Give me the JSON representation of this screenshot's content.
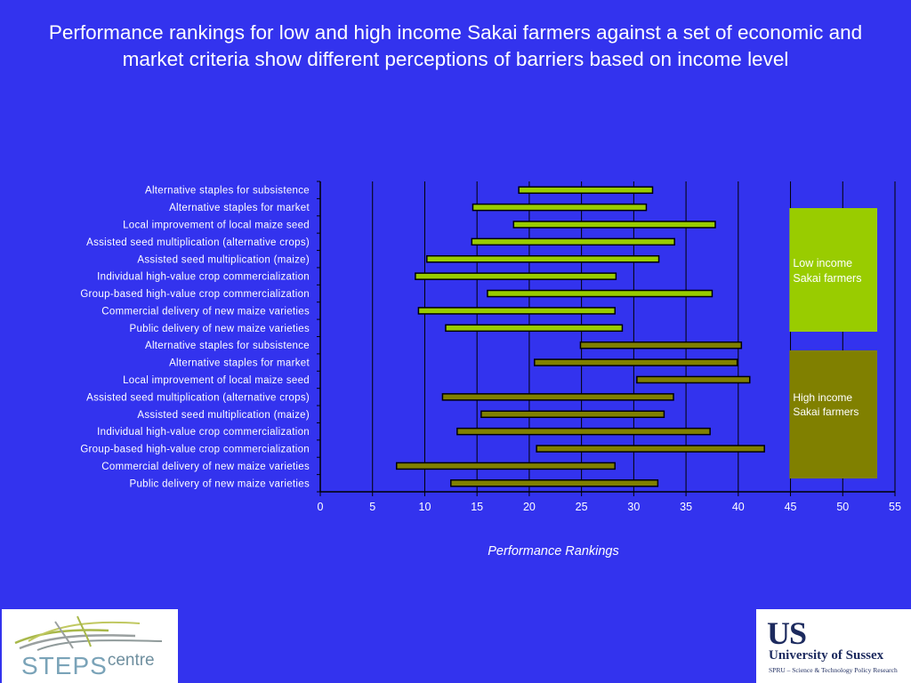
{
  "slide": {
    "title": "Performance rankings for low and high income Sakai farmers against a set of economic and market criteria show different perceptions of barriers based on income level"
  },
  "colors": {
    "background": "#3333ee",
    "low_income": "#99cc00",
    "high_income": "#808000"
  },
  "chart_data": {
    "type": "bar",
    "subtype": "floating-range-horizontal",
    "xlabel": "Performance Rankings",
    "xlim": [
      0,
      55
    ],
    "xticks": [
      0,
      5,
      10,
      15,
      20,
      25,
      30,
      35,
      40,
      45,
      50,
      55
    ],
    "grid": "vertical",
    "legend_position": "right",
    "series": [
      {
        "name": "Low income Sakai farmers",
        "color": "#99cc00",
        "categories": [
          "Alternative staples for subsistence",
          "Alternative staples for market",
          "Local improvement of local maize seed",
          "Assisted seed multiplication (alternative crops)",
          "Assisted seed multiplication (maize)",
          "Individual high-value crop commercialization",
          "Group-based high-value crop commercialization",
          "Commercial delivery of new maize varieties",
          "Public delivery of new maize varieties"
        ],
        "ranges": [
          [
            19,
            31.8
          ],
          [
            14.6,
            31.2
          ],
          [
            18.5,
            37.8
          ],
          [
            14.5,
            33.9
          ],
          [
            10.2,
            32.4
          ],
          [
            9.1,
            28.3
          ],
          [
            16,
            37.5
          ],
          [
            9.4,
            28.2
          ],
          [
            12,
            28.9
          ]
        ]
      },
      {
        "name": "High income Sakai farmers",
        "color": "#808000",
        "categories": [
          "Alternative staples for subsistence",
          "Alternative staples for market",
          "Local improvement of local maize seed",
          "Assisted seed multiplication (alternative crops)",
          "Assisted seed multiplication (maize)",
          "Individual high-value crop commercialization",
          "Group-based high-value crop commercialization",
          "Commercial delivery of new maize varieties",
          "Public delivery of new maize varieties"
        ],
        "ranges": [
          [
            24.9,
            40.3
          ],
          [
            20.5,
            39.9
          ],
          [
            30.3,
            41.1
          ],
          [
            11.7,
            33.8
          ],
          [
            15.4,
            32.9
          ],
          [
            13.1,
            37.3
          ],
          [
            20.7,
            42.5
          ],
          [
            7.3,
            28.2
          ],
          [
            12.5,
            32.3
          ]
        ]
      }
    ],
    "legend": {
      "low": "Low income Sakai farmers",
      "low_lines": [
        "Low income",
        "Sakai farmers"
      ],
      "high": "High income Sakai farmers",
      "high_lines": [
        "High income",
        "Sakai farmers"
      ]
    }
  },
  "logos": {
    "steps_main": "STEPS",
    "steps_sub": "centre",
    "sussex_mark": "US",
    "sussex_name": "University of Sussex",
    "sussex_unit": "SPRU – Science & Technology Policy Research"
  }
}
